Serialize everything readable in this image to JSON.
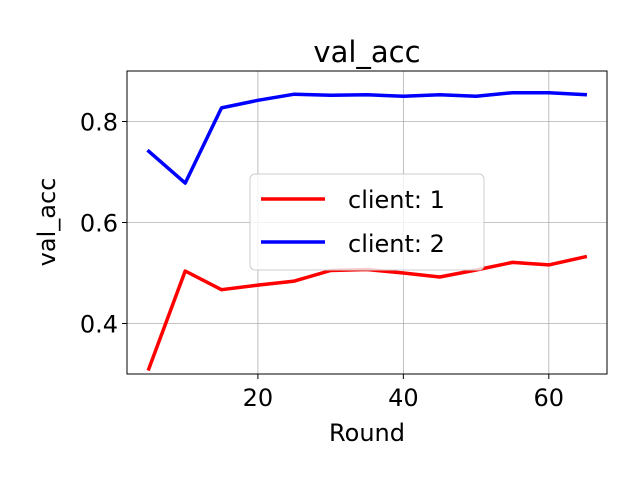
{
  "chart_data": {
    "type": "line",
    "title": "val_acc",
    "xlabel": "Round",
    "ylabel": "val_acc",
    "xlim": [
      2,
      68
    ],
    "ylim": [
      0.3,
      0.9
    ],
    "xticks": [
      20,
      40,
      60
    ],
    "yticks": [
      0.4,
      0.6,
      0.8
    ],
    "xtick_labels": [
      "20",
      "40",
      "60"
    ],
    "ytick_labels": [
      "0.4",
      "0.6",
      "0.8"
    ],
    "grid": true,
    "legend_position": "center-right",
    "x": [
      5,
      10,
      15,
      20,
      25,
      30,
      35,
      40,
      45,
      50,
      55,
      60,
      65
    ],
    "series": [
      {
        "name": "client: 1",
        "color": "#ff0000",
        "values": [
          0.31,
          0.504,
          0.467,
          0.476,
          0.484,
          0.505,
          0.507,
          0.5,
          0.492,
          0.506,
          0.521,
          0.516,
          0.532
        ]
      },
      {
        "name": "client: 2",
        "color": "#0000ff",
        "values": [
          0.741,
          0.678,
          0.827,
          0.842,
          0.854,
          0.852,
          0.853,
          0.85,
          0.853,
          0.85,
          0.857,
          0.857,
          0.853
        ]
      }
    ]
  }
}
